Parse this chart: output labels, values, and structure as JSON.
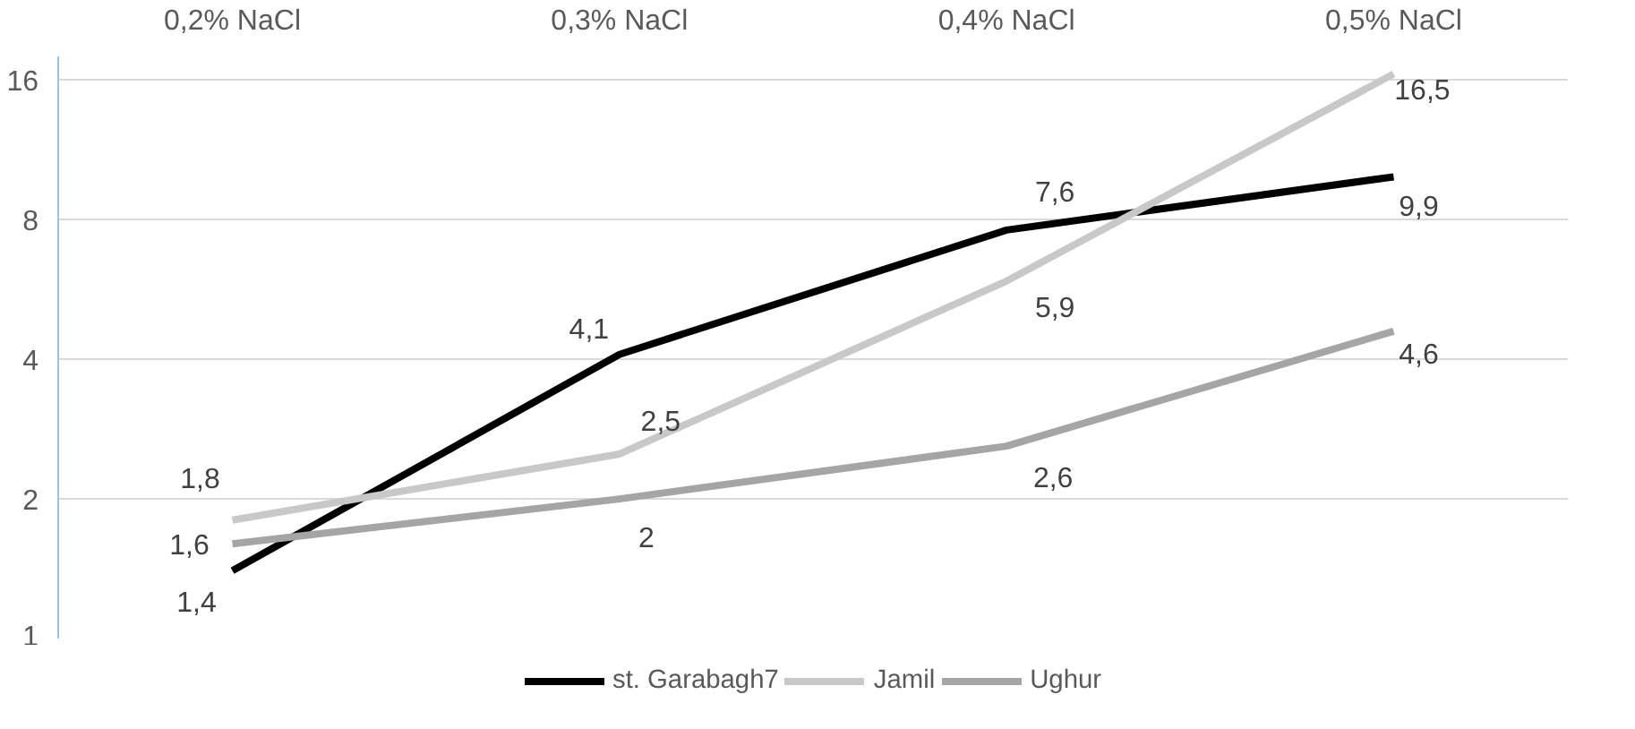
{
  "chart_data": {
    "type": "line",
    "categories": [
      "0,2% NaCl",
      "0,3% NaCl",
      "0,4% NaCl",
      "0,5% NaCl"
    ],
    "series": [
      {
        "name": "st. Garabagh7",
        "color": "#000000",
        "values": [
          1.4,
          4.1,
          7.6,
          9.9
        ],
        "value_labels": [
          "1,4",
          "4,1",
          "7,6",
          "9,9"
        ]
      },
      {
        "name": "Jamil",
        "color": "#c8c8c8",
        "values": [
          1.8,
          2.5,
          5.9,
          16.5
        ],
        "value_labels": [
          "1,8",
          "2,5",
          "5,9",
          "16,5"
        ]
      },
      {
        "name": "Ughur",
        "color": "#a5a5a5",
        "values": [
          1.6,
          2,
          2.6,
          4.6
        ],
        "value_labels": [
          "1,6",
          "2",
          "2,6",
          "4,6"
        ]
      }
    ],
    "log": "y",
    "ylim": [
      1,
      18
    ],
    "yticks": [
      1,
      2,
      4,
      8,
      16
    ],
    "grid": "y",
    "legend": "bottom",
    "marker": "none",
    "line_style": "solid"
  }
}
